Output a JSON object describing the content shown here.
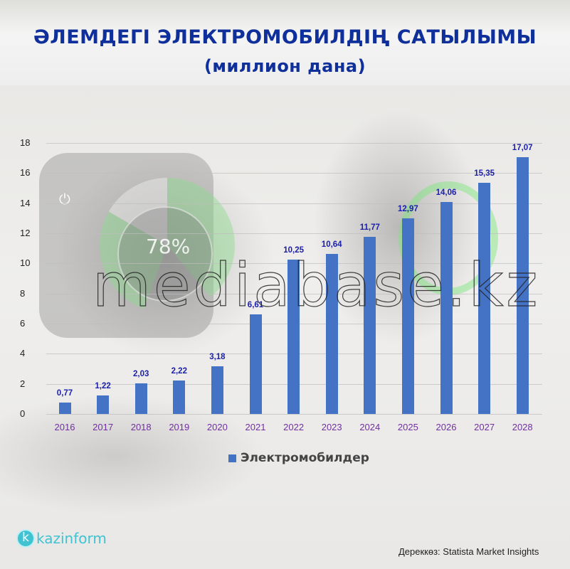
{
  "header": {
    "title": "ӘЛЕМДЕГІ ЭЛЕКТРОМОБИЛДІҢ САТЫЛЫМЫ",
    "subtitle": "(миллион дана)"
  },
  "background": {
    "dashboard_percent": "78%",
    "power_icon": "⏻"
  },
  "watermark": "mediabase.kz",
  "chart_data": {
    "type": "bar",
    "title": "ӘЛЕМДЕГІ ЭЛЕКТРОМОБИЛДІҢ САТЫЛЫМЫ",
    "subtitle": "(миллион дана)",
    "xlabel": "",
    "ylabel": "",
    "ylim": [
      0,
      18
    ],
    "yticks": [
      "0",
      "2",
      "4",
      "6",
      "8",
      "10",
      "12",
      "14",
      "16",
      "18"
    ],
    "grid": true,
    "legend_position": "bottom",
    "categories": [
      "2016",
      "2017",
      "2018",
      "2019",
      "2020",
      "2021",
      "2022",
      "2023",
      "2024",
      "2025",
      "2026",
      "2027",
      "2028"
    ],
    "series": [
      {
        "name": "Электромобилдер",
        "color": "#4472c4",
        "values": [
          0.77,
          1.22,
          2.03,
          2.22,
          3.18,
          6.61,
          10.25,
          10.64,
          11.77,
          12.97,
          14.06,
          15.35,
          17.07
        ],
        "labels": [
          "0,77",
          "1,22",
          "2,03",
          "2,22",
          "3,18",
          "6,61",
          "10,25",
          "10,64",
          "11,77",
          "12,97",
          "14,06",
          "15,35",
          "17,07"
        ]
      }
    ]
  },
  "legend": {
    "label": "Электромобилдер",
    "color": "#4472c4"
  },
  "footer": {
    "logo_letter": "k",
    "logo_text": "kazinform",
    "source": "Дереккөз: Statista Market Insights"
  },
  "colors": {
    "title": "#0f2f9a",
    "bar": "#4472c4",
    "value_label": "#1a1fa8",
    "x_label": "#7030a0",
    "logo": "#3fc3d3"
  }
}
